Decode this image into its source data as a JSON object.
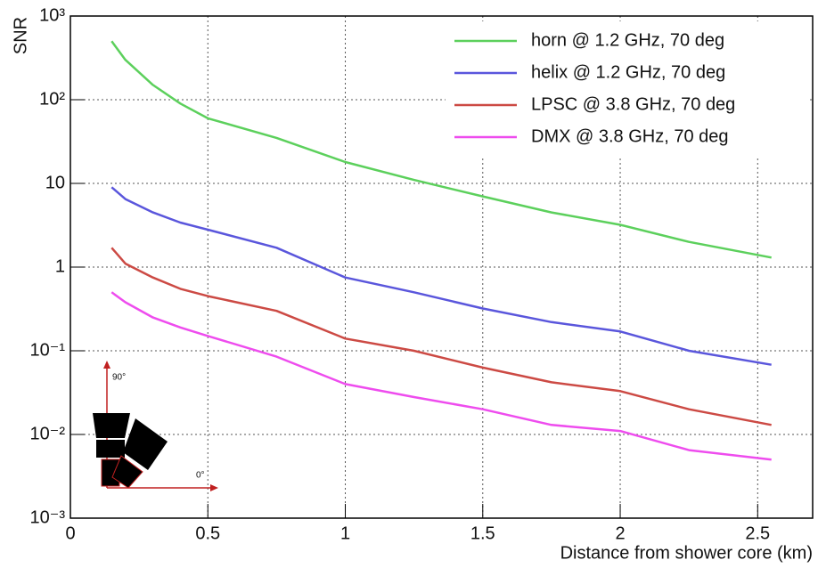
{
  "chart_data": {
    "type": "line",
    "y_label": "SNR",
    "x_label": "Distance from shower core (km)",
    "x": [
      0.15,
      0.2,
      0.3,
      0.4,
      0.5,
      0.75,
      1,
      1.25,
      1.5,
      1.75,
      2,
      2.25,
      2.55
    ],
    "series": [
      {
        "name": "horn @ 1.2 GHz, 70 deg",
        "color": "#5cd05c",
        "values": [
          500,
          300,
          150,
          90,
          60,
          35,
          18,
          11,
          7,
          4.5,
          3.2,
          2,
          1.3
        ]
      },
      {
        "name": "helix @ 1.2 GHz, 70 deg",
        "color": "#5a56dc",
        "values": [
          9,
          6.5,
          4.5,
          3.4,
          2.8,
          1.7,
          0.75,
          0.5,
          0.32,
          0.22,
          0.17,
          0.1,
          0.068
        ]
      },
      {
        "name": "LPSC @ 3.8 GHz, 70 deg",
        "color": "#cc4a44",
        "values": [
          1.7,
          1.1,
          0.75,
          0.55,
          0.45,
          0.3,
          0.14,
          0.1,
          0.063,
          0.042,
          0.033,
          0.02,
          0.013
        ]
      },
      {
        "name": "DMX @ 3.8 GHz, 70 deg",
        "color": "#ee4cee",
        "values": [
          0.5,
          0.38,
          0.25,
          0.19,
          0.15,
          0.085,
          0.04,
          0.028,
          0.02,
          0.013,
          0.011,
          0.0065,
          0.005
        ]
      }
    ],
    "xlim": [
      0,
      2.7
    ],
    "xticks": [
      0,
      0.5,
      1,
      1.5,
      2,
      2.5
    ],
    "ylim": [
      0.001,
      1000
    ],
    "yticks": [
      {
        "value": 0.001,
        "label": "10⁻³"
      },
      {
        "value": 0.01,
        "label": "10⁻²"
      },
      {
        "value": 0.1,
        "label": "10⁻¹"
      },
      1,
      10,
      {
        "value": 100,
        "label": "10²"
      },
      {
        "value": 1000,
        "label": "10³"
      }
    ],
    "log_y": true,
    "grid": true,
    "legend": "top-right",
    "annotations": [
      "90°",
      "0°"
    ]
  }
}
